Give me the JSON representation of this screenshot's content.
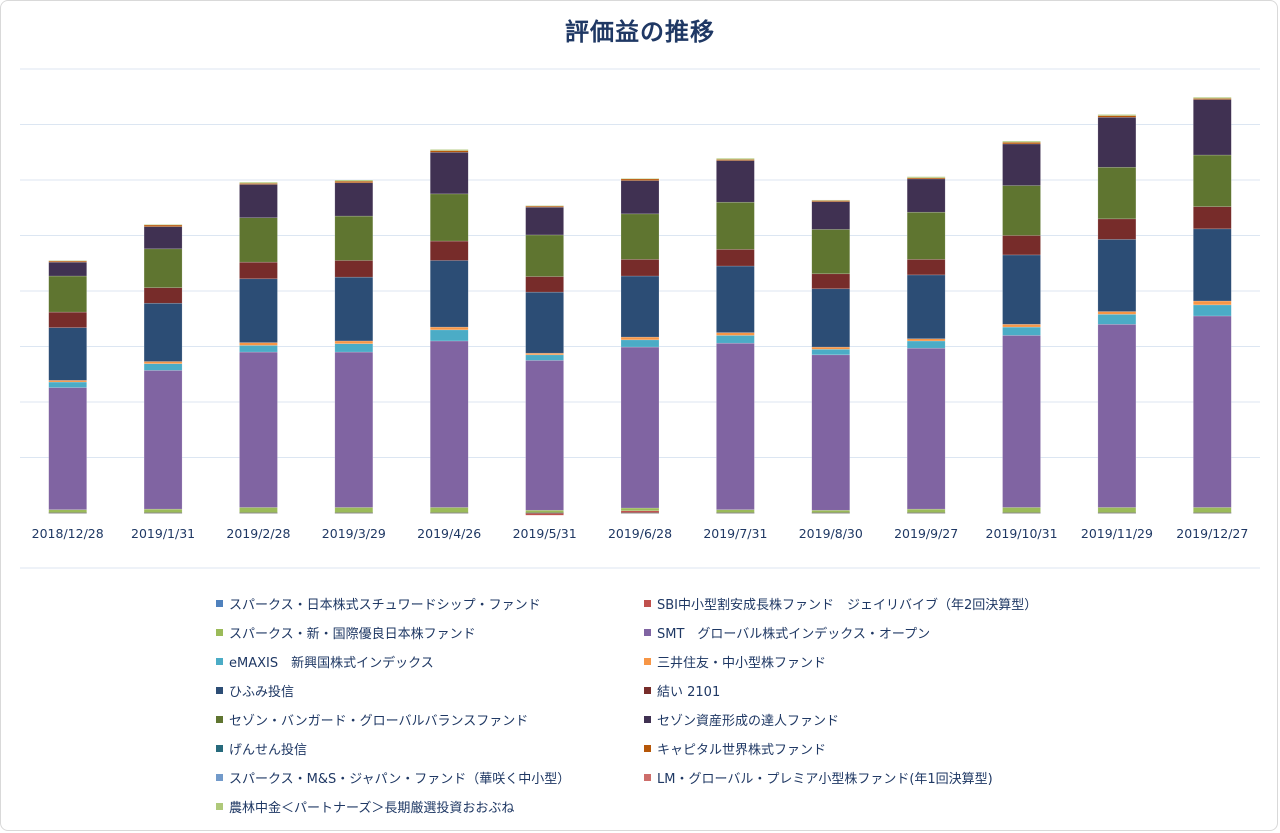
{
  "chart_data": {
    "type": "stacked-bar",
    "title": "評価益の推移",
    "xlabel": "",
    "ylabel": "",
    "grid": true,
    "legend_position": "bottom",
    "categories": [
      "2018/12/28",
      "2019/1/31",
      "2019/2/28",
      "2019/3/29",
      "2019/4/26",
      "2019/5/31",
      "2019/6/28",
      "2019/7/31",
      "2019/8/30",
      "2019/9/27",
      "2019/10/31",
      "2019/11/29",
      "2019/12/27"
    ],
    "ylim": [
      -0.2,
      8.0
    ],
    "series": [
      {
        "name": "スパークス・日本株式スチュワードシップ・ファンド",
        "color": "#4f81bd",
        "values": [
          0,
          0,
          0,
          0,
          0,
          0,
          0,
          0,
          0,
          0,
          0,
          0,
          0
        ]
      },
      {
        "name": "SBI中小型割安成長株ファンド　ジェイリバイブ（年2回決算型）",
        "color": "#c0504d",
        "values": [
          0,
          0,
          0,
          0,
          0,
          -0.04,
          0.04,
          0,
          0,
          0,
          0,
          0,
          0
        ]
      },
      {
        "name": "スパークス・新・国際優良日本株ファンド",
        "color": "#9bbb59",
        "values": [
          0.06,
          0.07,
          0.1,
          0.1,
          0.1,
          0.05,
          0.05,
          0.06,
          0.05,
          0.07,
          0.1,
          0.1,
          0.1
        ]
      },
      {
        "name": "SMT　グローバル株式インデックス・オープン",
        "color": "#8064a2",
        "values": [
          2.2,
          2.5,
          2.8,
          2.8,
          3.0,
          2.7,
          2.9,
          3.0,
          2.8,
          2.9,
          3.1,
          3.3,
          3.45
        ]
      },
      {
        "name": "eMAXIS　新興国株式インデックス",
        "color": "#4bacc6",
        "values": [
          0.1,
          0.12,
          0.12,
          0.15,
          0.2,
          0.1,
          0.13,
          0.14,
          0.1,
          0.13,
          0.15,
          0.18,
          0.2
        ]
      },
      {
        "name": "三井住友・中小型株ファンド",
        "color": "#f79646",
        "values": [
          0.03,
          0.04,
          0.05,
          0.05,
          0.05,
          0.03,
          0.05,
          0.05,
          0.04,
          0.04,
          0.05,
          0.05,
          0.07
        ]
      },
      {
        "name": "ひふみ投信",
        "color": "#2c4d75",
        "values": [
          0.95,
          1.05,
          1.15,
          1.15,
          1.2,
          1.1,
          1.1,
          1.2,
          1.05,
          1.15,
          1.25,
          1.3,
          1.3
        ]
      },
      {
        "name": "結い 2101",
        "color": "#772c2a",
        "values": [
          0.28,
          0.28,
          0.3,
          0.3,
          0.35,
          0.28,
          0.3,
          0.3,
          0.27,
          0.28,
          0.35,
          0.37,
          0.4
        ]
      },
      {
        "name": "セゾン・バンガード・グローバルバランスファンド",
        "color": "#5f7530",
        "values": [
          0.65,
          0.7,
          0.8,
          0.8,
          0.85,
          0.75,
          0.82,
          0.85,
          0.8,
          0.85,
          0.9,
          0.93,
          0.93
        ]
      },
      {
        "name": "セゾン資産形成の達人ファンド",
        "color": "#403152",
        "values": [
          0.25,
          0.4,
          0.6,
          0.6,
          0.75,
          0.5,
          0.6,
          0.75,
          0.5,
          0.6,
          0.75,
          0.9,
          1.0
        ]
      },
      {
        "name": "げんせん投信",
        "color": "#276a7c",
        "values": [
          0,
          0,
          0,
          0,
          0,
          0,
          0,
          0,
          0,
          0,
          0,
          0,
          0
        ]
      },
      {
        "name": "キャピタル世界株式ファンド",
        "color": "#b65708",
        "values": [
          0.02,
          0.03,
          0.02,
          0.03,
          0.03,
          0.02,
          0.03,
          0.02,
          0.02,
          0.02,
          0.03,
          0.03,
          0.02
        ]
      },
      {
        "name": "スパークス・M&S・ジャパン・ファンド（華咲く中小型）",
        "color": "#729aca",
        "values": [
          0,
          0,
          0,
          0,
          0,
          0,
          0,
          0,
          0,
          0,
          0,
          0,
          0
        ]
      },
      {
        "name": "LM・グローバル・プレミア小型株ファンド(年1回決算型)",
        "color": "#cd6d6a",
        "values": [
          0,
          0,
          0,
          0,
          0,
          0,
          0,
          0,
          0,
          0,
          0,
          0,
          0
        ]
      },
      {
        "name": "農林中金＜パートナーズ＞長期厳選投資おおぶね",
        "color": "#afc97a",
        "values": [
          0.01,
          0.01,
          0.02,
          0.02,
          0.02,
          0.01,
          0.01,
          0.02,
          0.01,
          0.02,
          0.02,
          0.02,
          0.02
        ]
      }
    ]
  }
}
